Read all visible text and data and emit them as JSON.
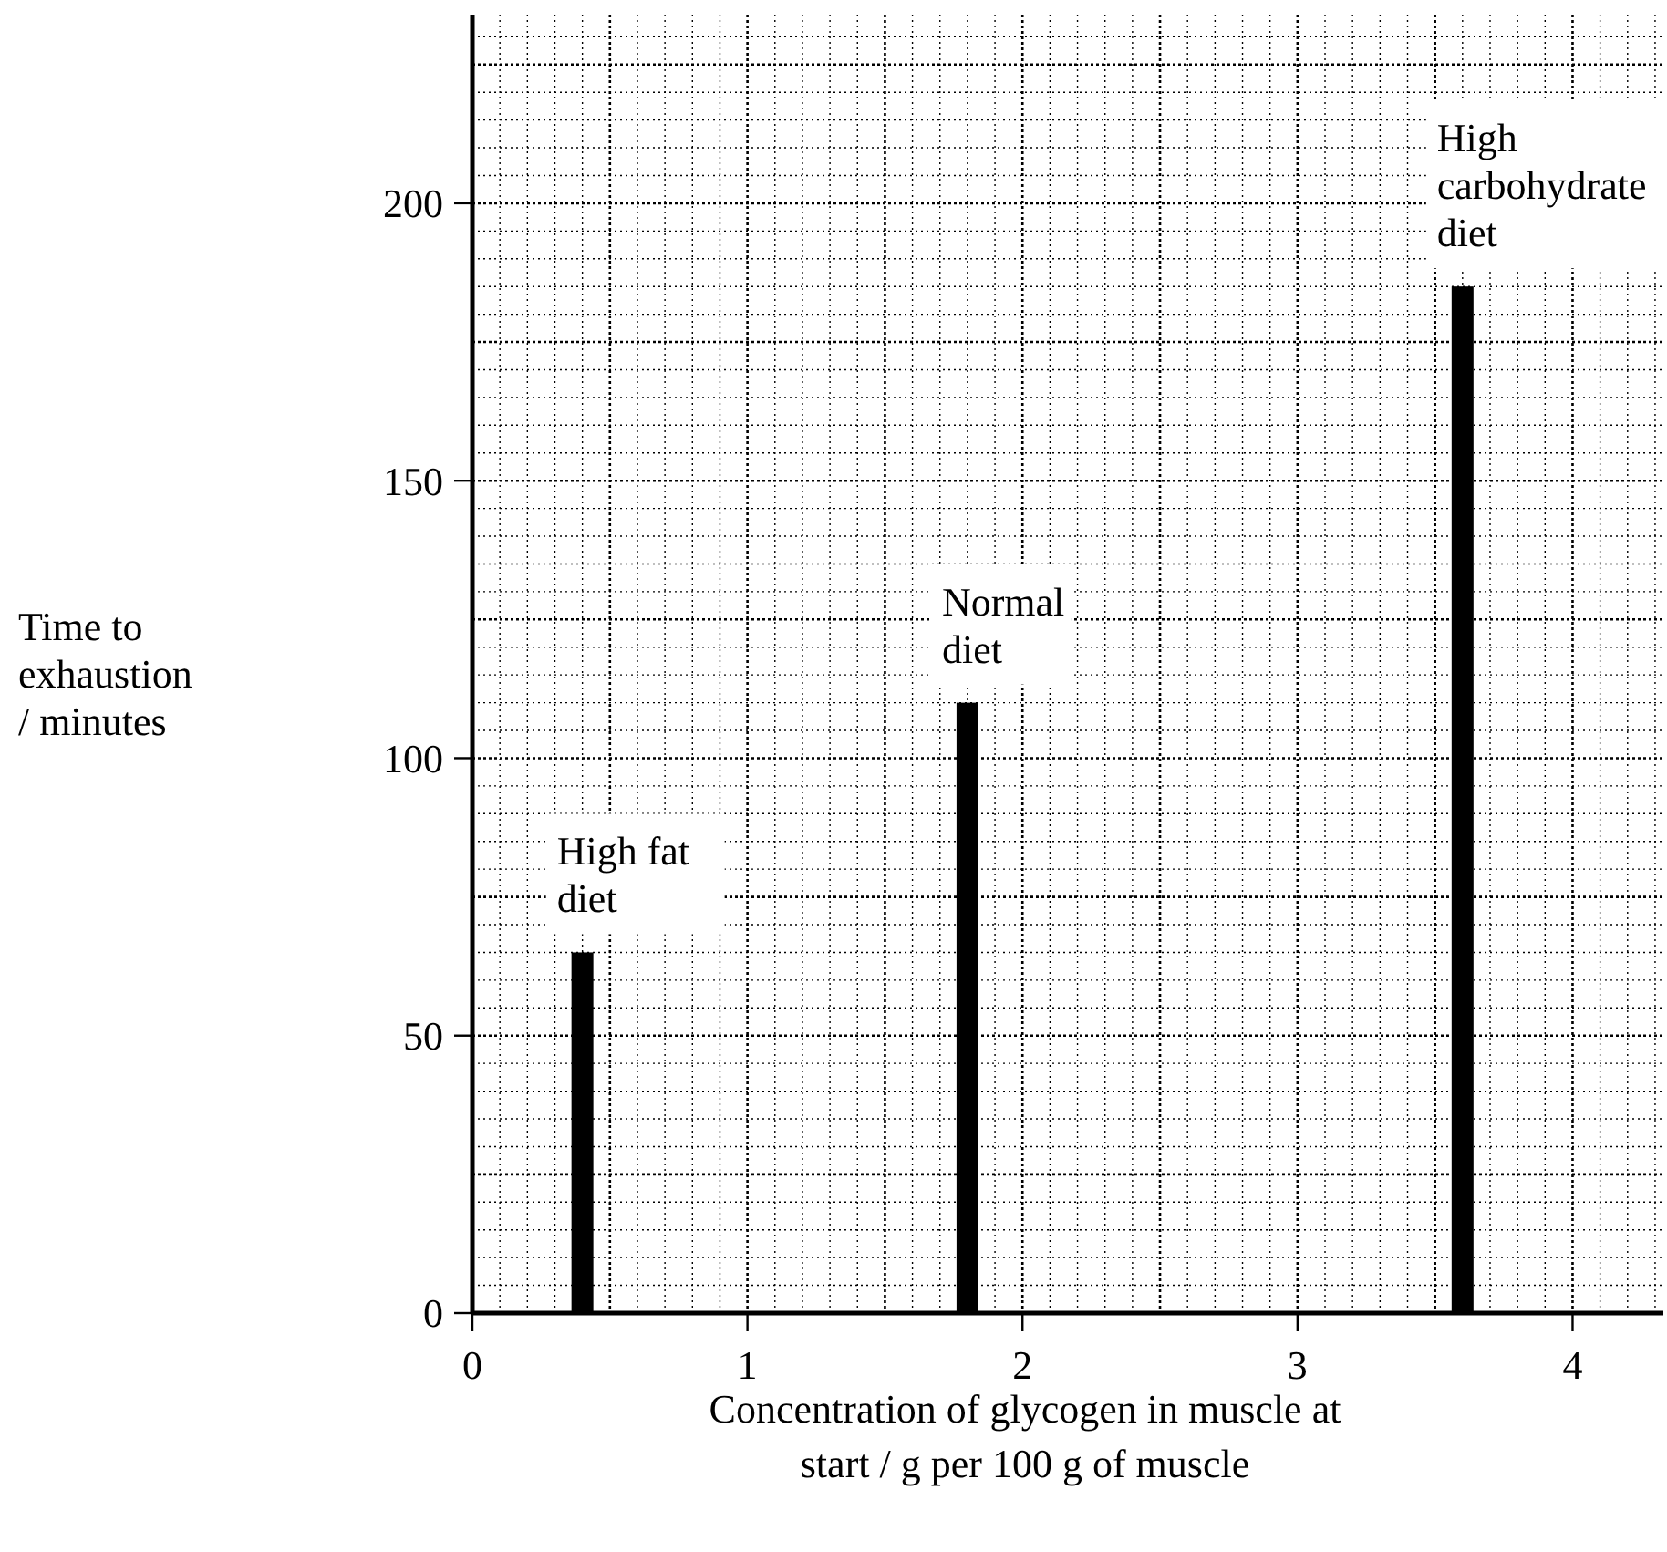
{
  "chart_data": {
    "type": "bar",
    "xlabel": "Concentration of glycogen in muscle at\nstart / g per 100 g of muscle",
    "ylabel": "Time to\nexhaustion\n/ minutes",
    "x": [
      0.4,
      1.8,
      3.6
    ],
    "values": [
      65,
      110,
      185
    ],
    "color": "#000000",
    "xlim": [
      0,
      4.33
    ],
    "ylim": [
      0,
      234
    ],
    "xticks": [
      0,
      1,
      2,
      3,
      4
    ],
    "yticks": [
      0,
      50,
      100,
      150,
      200
    ],
    "grid": true,
    "annotations": [
      {
        "text": "High fat\ndiet",
        "x": 0.4,
        "y": 65
      },
      {
        "text": "Normal\ndiet",
        "x": 1.8,
        "y": 110
      },
      {
        "text": "High\ncarbohydrate\ndiet",
        "x": 3.6,
        "y": 185
      }
    ]
  }
}
